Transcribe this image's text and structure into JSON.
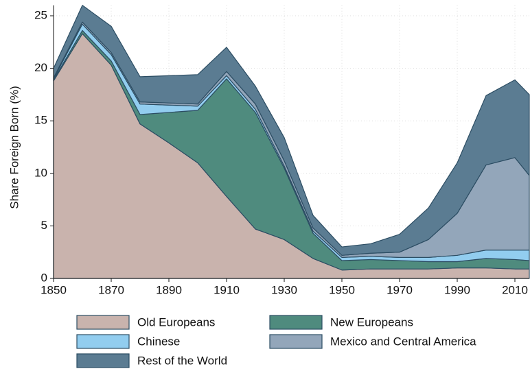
{
  "chart_data": {
    "type": "stacked_area",
    "y_label": "Share Foreign Born (%)",
    "x": [
      1850,
      1860,
      1870,
      1880,
      1890,
      1900,
      1910,
      1920,
      1930,
      1940,
      1950,
      1960,
      1970,
      1980,
      1990,
      2000,
      2010,
      2015
    ],
    "xlim": [
      1850,
      2015
    ],
    "xticks": [
      1850,
      1870,
      1890,
      1910,
      1930,
      1950,
      1970,
      1990,
      2010
    ],
    "ylim": [
      0,
      26
    ],
    "yticks": [
      0,
      5,
      10,
      15,
      20,
      25
    ],
    "grid": true,
    "series": [
      {
        "name": "Old Europeans",
        "color": "#c9b3ad",
        "values": [
          18.8,
          23.3,
          20.3,
          14.7,
          12.9,
          11.0,
          7.8,
          4.7,
          3.7,
          1.9,
          0.8,
          0.9,
          0.9,
          0.9,
          1.0,
          1.0,
          0.9,
          0.9
        ]
      },
      {
        "name": "New Europeans",
        "color": "#4f8b7e",
        "values": [
          0.1,
          0.3,
          0.4,
          0.9,
          2.9,
          5.0,
          11.2,
          11.1,
          6.8,
          2.4,
          0.9,
          0.9,
          0.8,
          0.7,
          0.6,
          0.9,
          0.9,
          0.8
        ]
      },
      {
        "name": "Chinese",
        "color": "#92cdef",
        "values": [
          0.1,
          0.6,
          0.6,
          1.0,
          0.7,
          0.4,
          0.3,
          0.3,
          0.2,
          0.2,
          0.3,
          0.3,
          0.3,
          0.4,
          0.6,
          0.8,
          0.9,
          1.0
        ]
      },
      {
        "name": "Mexico and Central America",
        "color": "#93a6ba",
        "values": [
          0.1,
          0.2,
          0.2,
          0.2,
          0.2,
          0.2,
          0.4,
          0.5,
          0.5,
          0.3,
          0.2,
          0.3,
          0.5,
          1.7,
          4.0,
          8.1,
          8.8,
          7.1
        ]
      },
      {
        "name": "Rest of the World",
        "color": "#5b7c92",
        "values": [
          0.9,
          1.6,
          2.5,
          2.4,
          2.6,
          2.8,
          2.3,
          1.7,
          2.2,
          1.2,
          0.8,
          0.9,
          1.7,
          3.0,
          4.8,
          6.6,
          7.4,
          7.7
        ]
      }
    ]
  }
}
